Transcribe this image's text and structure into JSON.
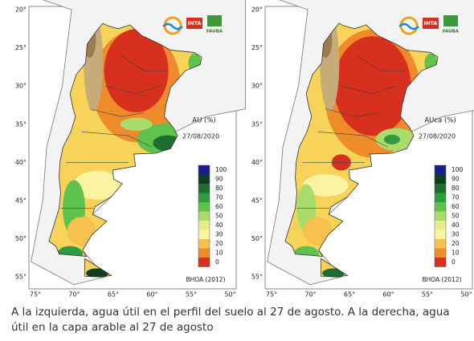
{
  "maps": [
    {
      "title": "AU (%)",
      "date": "27/08/2020",
      "source": "BHOA (2012)",
      "logos": [
        "INTA",
        "FAUBA"
      ],
      "lat_labels": [
        "20°",
        "25°",
        "30°",
        "35°",
        "40°",
        "45°",
        "50°",
        "55°"
      ],
      "lon_labels": [
        "75°",
        "70°",
        "65°",
        "60°",
        "55°",
        "50°"
      ],
      "legend": {
        "labels": [
          "100",
          "90",
          "80",
          "70",
          "60",
          "50",
          "40",
          "30",
          "20",
          "10",
          "0"
        ],
        "colors": [
          "#1c1c8f",
          "#0d3f20",
          "#1f6e31",
          "#2f9c40",
          "#5fc24d",
          "#a9dc6b",
          "#e6ee8c",
          "#fbf2a2",
          "#f6c14e",
          "#ee8b2b",
          "#d8301e"
        ]
      }
    },
    {
      "title": "AUca (%)",
      "date": "27/08/2020",
      "source": "BHOA (2012)",
      "logos": [
        "INTA",
        "FAUBA"
      ],
      "lat_labels": [
        "20°",
        "25°",
        "30°",
        "35°",
        "40°",
        "45°",
        "50°",
        "55°"
      ],
      "lon_labels": [
        "75°",
        "70°",
        "65°",
        "60°",
        "55°",
        "50°"
      ],
      "legend": {
        "labels": [
          "100",
          "90",
          "80",
          "70",
          "60",
          "50",
          "40",
          "30",
          "20",
          "10",
          "0"
        ],
        "colors": [
          "#1c1c8f",
          "#0d3f20",
          "#1f6e31",
          "#2f9c40",
          "#5fc24d",
          "#a9dc6b",
          "#e6ee8c",
          "#fbf2a2",
          "#f6c14e",
          "#ee8b2b",
          "#d8301e"
        ]
      }
    }
  ],
  "caption": "A la izquierda, agua útil en el perfil del suelo al 27 de agosto. A la derecha, agua útil en la capa arable al 27 de agosto"
}
